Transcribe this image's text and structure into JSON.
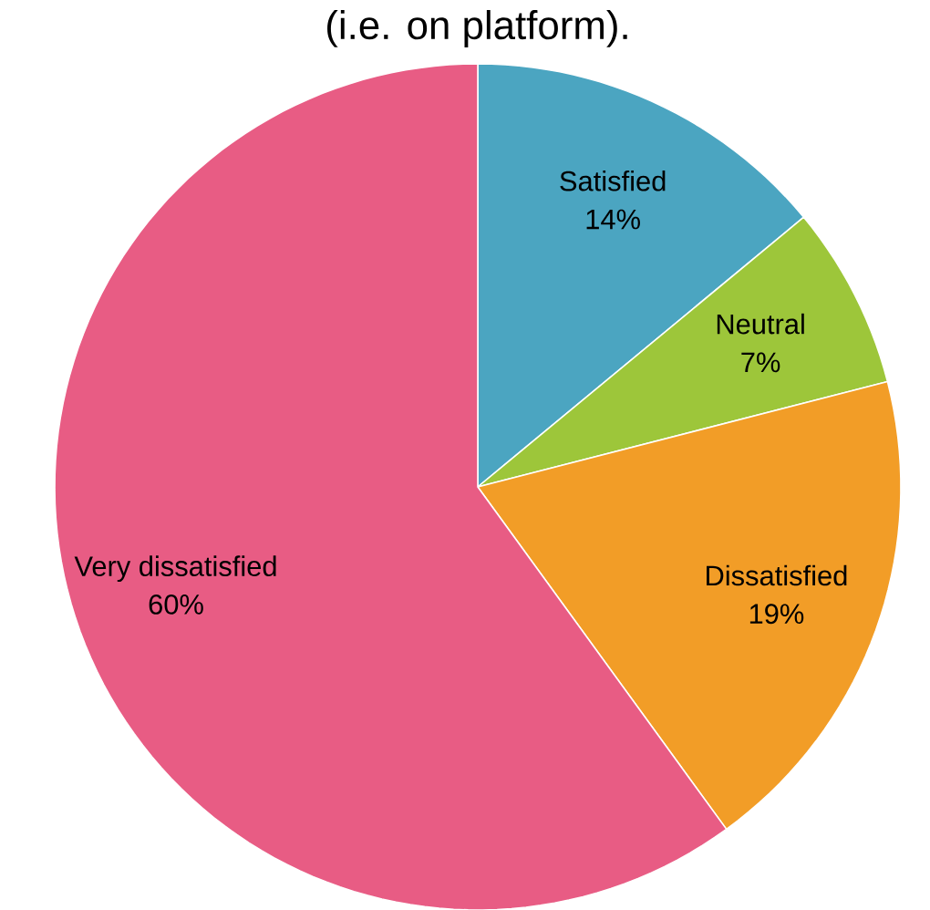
{
  "chart_data": {
    "type": "pie",
    "title": "(i.e. on platform).",
    "categories": [
      "Satisfied",
      "Neutral",
      "Dissatisfied",
      "Very dissatisfied"
    ],
    "values": [
      14,
      7,
      19,
      60
    ],
    "value_labels": [
      "14%",
      "7%",
      "19%",
      "60%"
    ],
    "colors": [
      "#4ba5c1",
      "#9dc63a",
      "#f29d27",
      "#e85c84"
    ]
  }
}
